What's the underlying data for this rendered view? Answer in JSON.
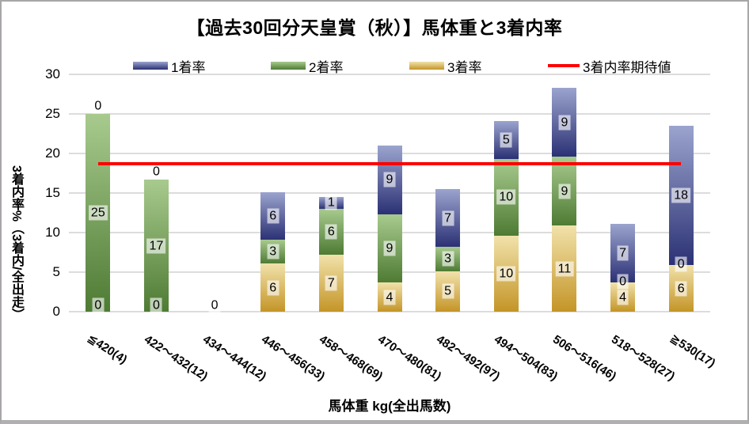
{
  "title": "【過去30回分天皇賞（秋）】馬体重と3着内率",
  "colors": {
    "win_top": "#9ba4ce",
    "win_bottom": "#2b3174",
    "second_top": "#a8ca8e",
    "second_bottom": "#4e7b34",
    "third_top": "#f1e2ab",
    "third_bottom": "#c49527",
    "expected_line": "#fe0000",
    "gridline": "#dcdcdc",
    "border": "#a9a6a9"
  },
  "legend": {
    "items": [
      {
        "key": "first",
        "label": "1着率",
        "type": "bar"
      },
      {
        "key": "second",
        "label": "2着率",
        "type": "bar"
      },
      {
        "key": "third",
        "label": "3着率",
        "type": "bar"
      },
      {
        "key": "expected",
        "label": "3着内率期待値",
        "type": "line"
      }
    ]
  },
  "chart_data": {
    "type": "bar",
    "stacked": true,
    "title": "【過去30回分天皇賞（秋）】馬体重と3着内率",
    "xlabel": "馬体重 kg(全出馬数)",
    "ylabel": "3着内率%（3着内/全出走）",
    "ylim": [
      0,
      30
    ],
    "yticks": [
      0,
      5,
      10,
      15,
      20,
      25,
      30
    ],
    "grid": true,
    "legend_position": "top",
    "categories": [
      "≦420(4)",
      "422～432(12)",
      "434～444(12)",
      "446～456(33)",
      "458～468(69)",
      "470～480(81)",
      "482～492(97)",
      "494～504(83)",
      "506～516(46)",
      "518～528(27)",
      "≧530(17)"
    ],
    "series": [
      {
        "key": "third",
        "name": "3着率",
        "values": [
          0,
          0,
          0,
          6.06,
          7.25,
          3.7,
          5.15,
          9.64,
          10.87,
          3.7,
          5.88
        ],
        "labels": [
          "0",
          "0",
          "0",
          "6",
          "7",
          "4",
          "5",
          "10",
          "11",
          "4",
          "6"
        ]
      },
      {
        "key": "second",
        "name": "2着率",
        "values": [
          25.0,
          16.67,
          0,
          3.03,
          5.8,
          8.64,
          3.09,
          9.64,
          8.7,
          0,
          0
        ],
        "labels": [
          "25",
          "17",
          "",
          "3",
          "6",
          "9",
          "3",
          "10",
          "9",
          "0",
          "0"
        ]
      },
      {
        "key": "first",
        "name": "1着率",
        "values": [
          0,
          0,
          0,
          6.06,
          1.45,
          8.64,
          7.22,
          4.82,
          8.7,
          7.41,
          17.65
        ],
        "labels": [
          "0",
          "0",
          "",
          "6",
          "1",
          "9",
          "7",
          "5",
          "9",
          "7",
          "18"
        ]
      }
    ],
    "expected_line": {
      "name": "3着内率期待値",
      "value": 18.7
    }
  }
}
